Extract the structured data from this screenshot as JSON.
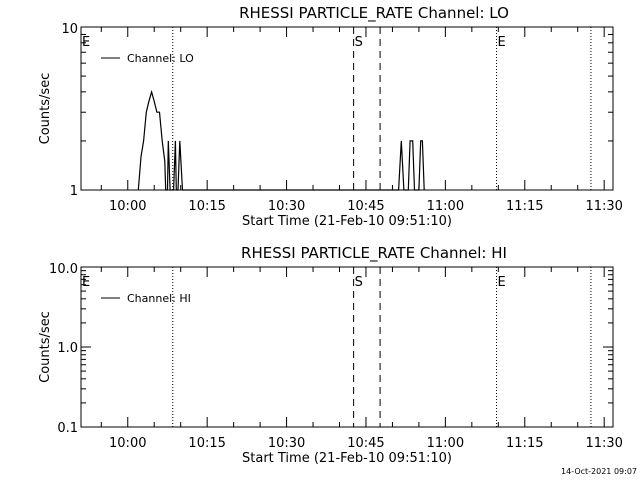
{
  "timestamp": "14-Oct-2021 09:07",
  "chart_data": [
    {
      "type": "line",
      "title": "RHESSI PARTICLE_RATE Channel: LO",
      "xlabel": "Start Time (21-Feb-10 09:51:10)",
      "ylabel": "Counts/sec",
      "y_scale": "log",
      "ylim": [
        1,
        10
      ],
      "y_ticks": [
        {
          "value": 1,
          "label": "1"
        },
        {
          "value": 10,
          "label": "10"
        }
      ],
      "xlim": [
        "09:51:10",
        "11:31:40"
      ],
      "x_ticks": [
        "10:00",
        "10:15",
        "10:30",
        "10:45",
        "11:00",
        "11:15",
        "11:30"
      ],
      "legend": "top-left",
      "series": [
        {
          "name": "Channel: LO",
          "points": [
            [
              "10:02:00",
              1
            ],
            [
              "10:02:30",
              1.6
            ],
            [
              "10:03:00",
              2.0
            ],
            [
              "10:03:30",
              3.0
            ],
            [
              "10:04:00",
              3.5
            ],
            [
              "10:04:30",
              4.0
            ],
            [
              "10:05:00",
              3.5
            ],
            [
              "10:05:30",
              3.0
            ],
            [
              "10:06:00",
              3.0
            ],
            [
              "10:06:30",
              2.0
            ],
            [
              "10:07:00",
              1.5
            ],
            [
              "10:07:10",
              1
            ],
            [
              "10:07:30",
              1
            ],
            [
              "10:07:40",
              2.0
            ],
            [
              "10:08:00",
              1
            ],
            [
              "10:08:40",
              1
            ],
            [
              "10:09:00",
              2.0
            ],
            [
              "10:09:10",
              1
            ],
            [
              "10:09:30",
              1
            ],
            [
              "10:09:50",
              2.0
            ],
            [
              "10:10:20",
              1
            ],
            [
              "10:51:10",
              1
            ],
            [
              "10:51:40",
              2.0
            ],
            [
              "10:52:10",
              1
            ],
            [
              "10:53:00",
              1
            ],
            [
              "10:53:20",
              2.0
            ],
            [
              "10:53:50",
              2.0
            ],
            [
              "10:54:10",
              1
            ],
            [
              "10:55:00",
              1
            ],
            [
              "10:55:20",
              2.0
            ],
            [
              "10:55:40",
              2.0
            ],
            [
              "10:56:00",
              1
            ]
          ]
        }
      ],
      "event_markers": [
        {
          "letter": "E",
          "time": "09:51:10"
        },
        {
          "letter": "S",
          "time": "10:42:40"
        },
        {
          "letter": "E",
          "time": "11:09:40"
        }
      ],
      "dotted_lines": [
        "10:08:30",
        "11:09:40",
        "11:27:30"
      ],
      "dashed_lines": [
        "10:42:40",
        "10:47:40"
      ]
    },
    {
      "type": "line",
      "title": "RHESSI PARTICLE_RATE Channel: HI",
      "xlabel": "Start Time (21-Feb-10 09:51:10)",
      "ylabel": "Counts/sec",
      "y_scale": "log",
      "ylim": [
        0.1,
        10
      ],
      "y_ticks": [
        {
          "value": 0.1,
          "label": "0.1"
        },
        {
          "value": 1,
          "label": "1.0"
        },
        {
          "value": 10,
          "label": "10.0"
        }
      ],
      "xlim": [
        "09:51:10",
        "11:31:40"
      ],
      "x_ticks": [
        "10:00",
        "10:15",
        "10:30",
        "10:45",
        "11:00",
        "11:15",
        "11:30"
      ],
      "legend": "top-left",
      "series": [
        {
          "name": "Channel: HI",
          "points": []
        }
      ],
      "event_markers": [
        {
          "letter": "E",
          "time": "09:51:10"
        },
        {
          "letter": "S",
          "time": "10:42:40"
        },
        {
          "letter": "E",
          "time": "11:09:40"
        }
      ],
      "dotted_lines": [
        "10:08:30",
        "11:09:40",
        "11:27:30"
      ],
      "dashed_lines": [
        "10:42:40",
        "10:47:40"
      ]
    }
  ]
}
